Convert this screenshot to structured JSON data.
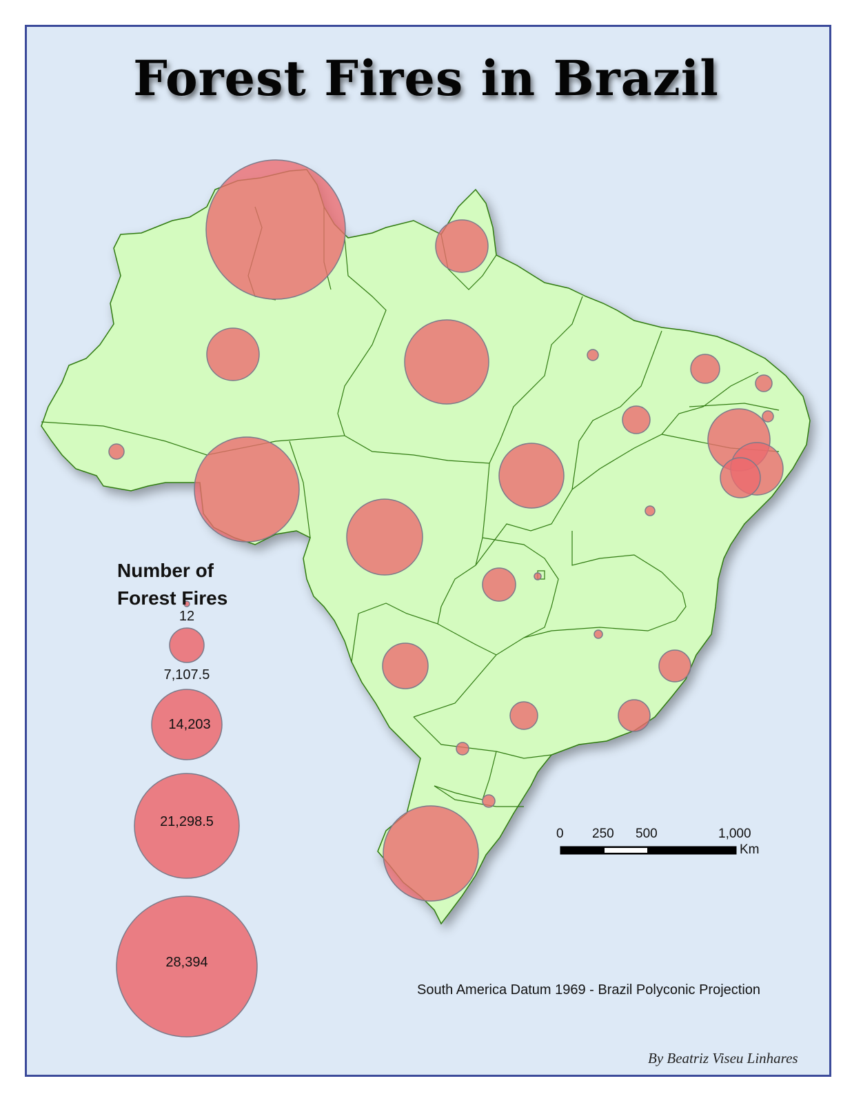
{
  "map": {
    "title": "Forest Fires in Brazil",
    "projection_note": "South America Datum 1969 - Brazil Polyconic Projection",
    "author": "By Beatriz Viseu Linhares",
    "colors": {
      "background": "#dde9f6",
      "land": "#d4fbbf",
      "border": "#2f7a10",
      "bubble": "#ec6a6e",
      "frame": "#3b4a9a"
    }
  },
  "legend": {
    "title_line1": "Number of",
    "title_line2": "Forest Fires",
    "labels": [
      "12",
      "7,107.5",
      "14,203",
      "21,298.5",
      "28,394"
    ],
    "values": [
      12,
      7107.5,
      14203,
      21298.5,
      28394
    ]
  },
  "scale_bar": {
    "labels": [
      "0",
      "250",
      "500",
      "1,000"
    ],
    "unit": "Km"
  }
}
